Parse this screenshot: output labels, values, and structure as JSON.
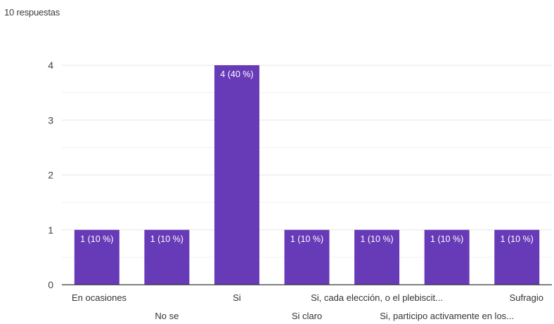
{
  "summary": {
    "responses_text": "10 respuestas"
  },
  "colors": {
    "bar": "#673ab7",
    "grid": "#e6e6e6",
    "axis": "#333333",
    "bar_text": "#ffffff"
  },
  "chart_data": {
    "type": "bar",
    "categories": [
      "En ocasiones",
      "No se",
      "Si",
      "Si claro",
      "Si, cada elección, o el plebiscit...",
      "Si, participo activamente en los...",
      "Sufragio"
    ],
    "values": [
      1,
      1,
      4,
      1,
      1,
      1,
      1
    ],
    "data_labels": [
      "1 (10 %)",
      "1 (10 %)",
      "4 (40 %)",
      "1 (10 %)",
      "1 (10 %)",
      "1 (10 %)",
      "1 (10 %)"
    ],
    "yticks": [
      0,
      1,
      2,
      3,
      4
    ],
    "ylim": [
      0,
      4
    ],
    "grid": true,
    "title": "",
    "xlabel": "",
    "ylabel": ""
  }
}
